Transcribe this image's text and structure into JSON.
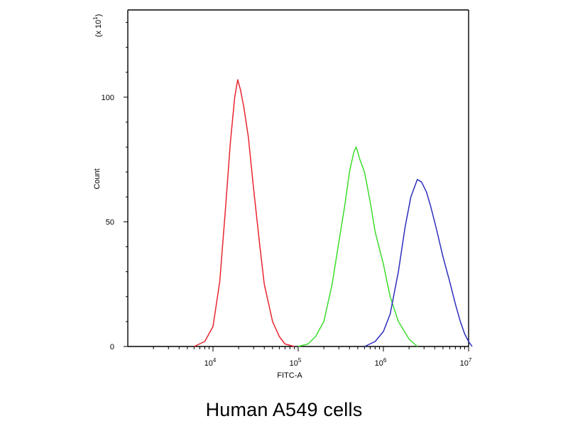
{
  "caption": "Human A549 cells",
  "chart_data": {
    "type": "line",
    "title": "",
    "xlabel": "FITC-A",
    "ylabel": "Count",
    "y_multiplier_label": "(x 10^1)",
    "x_scale": "log",
    "xlim": [
      1000,
      10000000
    ],
    "ylim": [
      0,
      135
    ],
    "x_ticks": [
      {
        "value": 10000,
        "label": "10^4"
      },
      {
        "value": 100000,
        "label": "10^5"
      },
      {
        "value": 1000000,
        "label": "10^6"
      },
      {
        "value": 10000000,
        "label": "10^7"
      }
    ],
    "y_ticks": [
      {
        "value": 0,
        "label": "0"
      },
      {
        "value": 50,
        "label": "50"
      },
      {
        "value": 100,
        "label": "100"
      }
    ],
    "grid": false,
    "legend": "none",
    "series": [
      {
        "color": "#e8252e",
        "points": [
          [
            6000,
            0
          ],
          [
            8000,
            2
          ],
          [
            10000,
            8
          ],
          [
            12000,
            26
          ],
          [
            14000,
            55
          ],
          [
            16000,
            82
          ],
          [
            18000,
            100
          ],
          [
            19500,
            107
          ],
          [
            21000,
            103
          ],
          [
            23000,
            96
          ],
          [
            26000,
            84
          ],
          [
            30000,
            63
          ],
          [
            35000,
            42
          ],
          [
            40000,
            25
          ],
          [
            50000,
            10
          ],
          [
            60000,
            4
          ],
          [
            70000,
            1
          ],
          [
            90000,
            0
          ]
        ]
      },
      {
        "color": "#3cdc2c",
        "points": [
          [
            100000,
            0
          ],
          [
            130000,
            1
          ],
          [
            160000,
            4
          ],
          [
            200000,
            10
          ],
          [
            250000,
            25
          ],
          [
            300000,
            42
          ],
          [
            350000,
            56
          ],
          [
            400000,
            70
          ],
          [
            450000,
            78
          ],
          [
            480000,
            80
          ],
          [
            530000,
            75
          ],
          [
            600000,
            70
          ],
          [
            700000,
            58
          ],
          [
            800000,
            46
          ],
          [
            1000000,
            33
          ],
          [
            1200000,
            20
          ],
          [
            1500000,
            10
          ],
          [
            2000000,
            3
          ],
          [
            2500000,
            0
          ]
        ]
      },
      {
        "color": "#2d2dbd",
        "points": [
          [
            600000,
            0
          ],
          [
            800000,
            2
          ],
          [
            1000000,
            6
          ],
          [
            1200000,
            13
          ],
          [
            1500000,
            30
          ],
          [
            1800000,
            48
          ],
          [
            2100000,
            60
          ],
          [
            2500000,
            67
          ],
          [
            2800000,
            66
          ],
          [
            3200000,
            62
          ],
          [
            3600000,
            56
          ],
          [
            4200000,
            47
          ],
          [
            5000000,
            36
          ],
          [
            6000000,
            26
          ],
          [
            7000000,
            17
          ],
          [
            8000000,
            10
          ],
          [
            9000000,
            5
          ],
          [
            10000000,
            2
          ],
          [
            11000000,
            0
          ]
        ]
      }
    ]
  }
}
